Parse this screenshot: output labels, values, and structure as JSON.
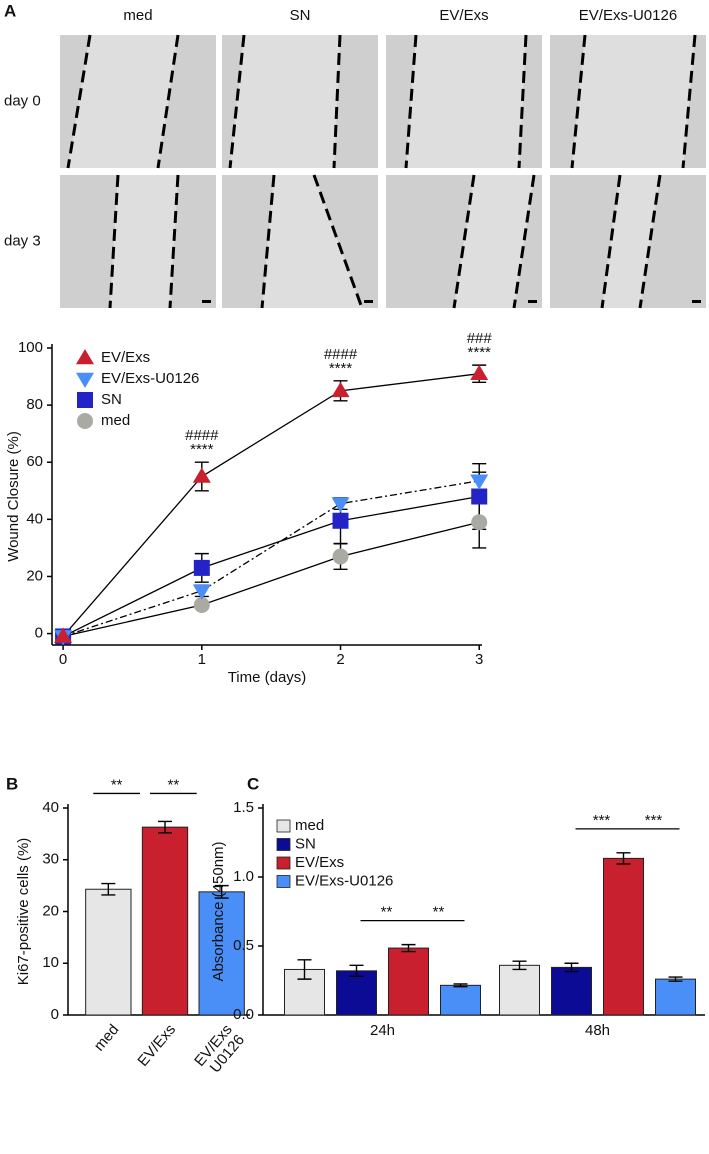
{
  "micrographs": {
    "panel": "A",
    "columns": [
      "med",
      "SN",
      "EV/Exs",
      "EV/Exs-U0126"
    ],
    "rows": [
      "day 0",
      "day 3"
    ]
  },
  "chart_data": [
    {
      "type": "line",
      "xlabel": "Time (days)",
      "ylabel": "Wound Closure (%)",
      "x": [
        0,
        1,
        2,
        3
      ],
      "xlim": [
        -0.08,
        3.02
      ],
      "xticks": [
        0,
        1,
        2,
        3
      ],
      "ylim": [
        -4,
        100
      ],
      "yticks": [
        0,
        20,
        40,
        60,
        80,
        100
      ],
      "legend": "upper left",
      "series": [
        {
          "name": "EV/Exs",
          "color": "#c8202f",
          "marker": "triangle-up",
          "linestyle": "solid",
          "values": [
            -1,
            55,
            85,
            91
          ],
          "errors": [
            null,
            5,
            3.5,
            3
          ]
        },
        {
          "name": "EV/Exs-U0126",
          "color": "#4a8ff7",
          "marker": "triangle-down",
          "linestyle": "dashdot",
          "values": [
            -1,
            15,
            45.5,
            53.5
          ],
          "errors": [
            null,
            2,
            2,
            3
          ]
        },
        {
          "name": "SN",
          "color": "#2323c8",
          "marker": "square",
          "linestyle": "solid",
          "values": [
            -1,
            23,
            39.5,
            48
          ],
          "errors": [
            null,
            5,
            8,
            11.5
          ]
        },
        {
          "name": "med",
          "color": "#a9aaa2",
          "marker": "circle",
          "linestyle": "solid",
          "values": [
            -1,
            10,
            27,
            39
          ],
          "errors": [
            null,
            1,
            4.5,
            9
          ]
        }
      ],
      "annotations": [
        {
          "x": 1,
          "text": [
            "####",
            "****"
          ]
        },
        {
          "x": 2,
          "text": [
            "####",
            "****"
          ]
        },
        {
          "x": 3,
          "text": [
            "###",
            "****"
          ]
        }
      ]
    },
    {
      "type": "bar",
      "panel": "B",
      "ylabel": "Ki67-positive cells (%)",
      "categories": [
        "med",
        "EV/Exs",
        "EV/Exs U0126"
      ],
      "values": [
        24.3,
        36.3,
        23.8
      ],
      "errors": [
        1.1,
        1.1,
        1.2
      ],
      "colors": [
        "#e6e6e6",
        "#c8202f",
        "#4a8ff7"
      ],
      "ylim": [
        0,
        40
      ],
      "yticks": [
        0,
        10,
        20,
        30,
        40
      ],
      "brackets": [
        {
          "categories": [
            "med",
            "EV/Exs"
          ],
          "label": "**"
        },
        {
          "categories": [
            "EV/Exs",
            "EV/Exs U0126"
          ],
          "label": "**"
        }
      ]
    },
    {
      "type": "grouped-bar",
      "panel": "C",
      "ylabel": "Absorbance (450nm)",
      "legend": "upper left",
      "categories": [
        "24h",
        "48h"
      ],
      "series": [
        {
          "name": "med",
          "color": "#e6e6e6",
          "values": [
            0.33,
            0.36
          ],
          "errors": [
            0.07,
            0.03
          ]
        },
        {
          "name": "SN",
          "color": "#0b0b96",
          "values": [
            0.32,
            0.345
          ],
          "errors": [
            0.04,
            0.03
          ]
        },
        {
          "name": "EV/Exs",
          "color": "#c8202f",
          "values": [
            0.485,
            1.135
          ],
          "errors": [
            0.025,
            0.04
          ]
        },
        {
          "name": "EV/Exs-U0126",
          "color": "#4a8ff7",
          "values": [
            0.215,
            0.26
          ],
          "errors": [
            0.01,
            0.015
          ]
        }
      ],
      "ylim": [
        0,
        1.5
      ],
      "yticks": [
        {
          "value": 0,
          "label": "0.0"
        },
        0.5,
        {
          "value": 1,
          "label": "1.0"
        },
        1.5
      ],
      "brackets": [
        {
          "category": "24h",
          "series": [
            "SN",
            "EV/Exs"
          ],
          "label": "**"
        },
        {
          "category": "24h",
          "series": [
            "EV/Exs",
            "EV/Exs-U0126"
          ],
          "label": "**"
        },
        {
          "category": "48h",
          "series": [
            "SN",
            "EV/Exs"
          ],
          "label": "***"
        },
        {
          "category": "48h",
          "series": [
            "EV/Exs",
            "EV/Exs-U0126"
          ],
          "label": "***"
        }
      ]
    }
  ]
}
